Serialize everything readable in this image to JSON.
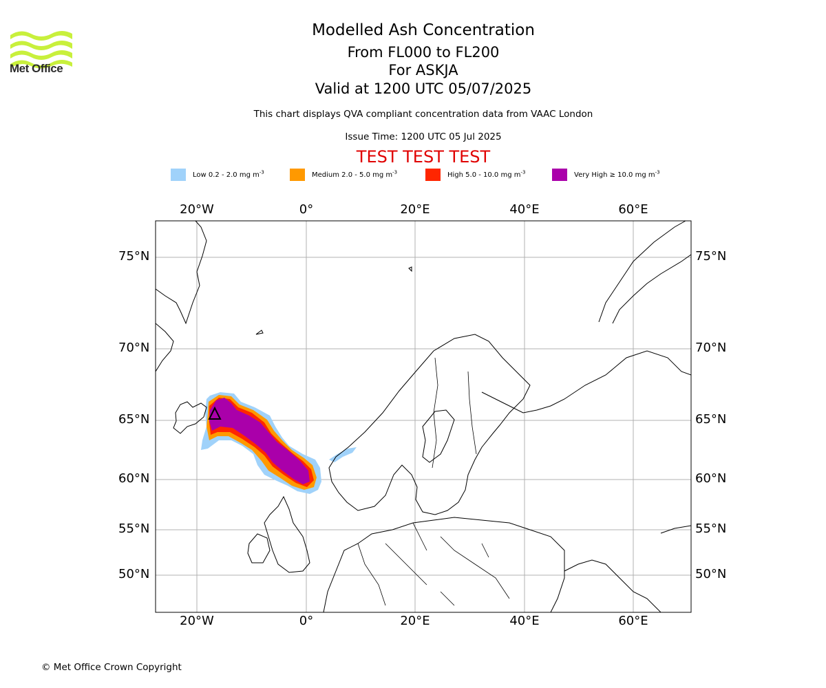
{
  "header": {
    "logo_text": "Met Office",
    "title": "Modelled Ash Concentration",
    "levels": "From FL000 to FL200",
    "volcano": "For ASKJA",
    "valid": "Valid at 1200 UTC 05/07/2025",
    "description": "This chart displays QVA compliant concentration data from VAAC London",
    "issue_time": "Issue Time: 1200 UTC 05 Jul 2025",
    "test_banner": "TEST TEST TEST"
  },
  "legend": [
    {
      "label": "Low 0.2 - 2.0 mg m",
      "color": "#a0d2fa"
    },
    {
      "label": "Medium 2.0 - 5.0 mg m",
      "color": "#ff9900"
    },
    {
      "label": "High 5.0 - 10.0 mg m",
      "color": "#ff2600"
    },
    {
      "label": "Very High ≥ 10.0 mg m",
      "color": "#aa00aa"
    }
  ],
  "legend_exponent": "-3",
  "map": {
    "longitude_labels": [
      "20°W",
      "0°",
      "20°E",
      "40°E",
      "60°E"
    ],
    "latitude_labels": [
      "75°N",
      "70°N",
      "65°N",
      "60°N",
      "55°N",
      "50°N"
    ],
    "volcano_marker": "triangle-icon"
  },
  "footer": {
    "copyright": "© Met Office Crown Copyright"
  }
}
